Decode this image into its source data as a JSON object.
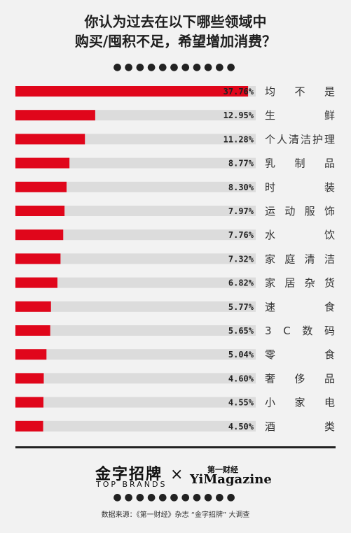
{
  "title_line1": "你认为过去在以下哪些领域中",
  "title_line2": "购买/囤积不足，希望增加消费？",
  "dots": "●●●●●●●●●●●",
  "chart_data": {
    "type": "bar",
    "orientation": "horizontal",
    "categories": [
      "均不是",
      "生鲜",
      "个人清洁护理",
      "乳制品",
      "时装",
      "运动服饰",
      "水饮",
      "家庭清洁",
      "家居杂货",
      "速食",
      "3C数码",
      "零食",
      "奢侈品",
      "小家电",
      "酒类"
    ],
    "value_labels": [
      "37.76%",
      "12.95%",
      "11.28%",
      "8.77%",
      "8.30%",
      "7.97%",
      "7.76%",
      "7.32%",
      "6.82%",
      "5.77%",
      "5.65%",
      "5.04%",
      "4.60%",
      "4.55%",
      "4.50%"
    ],
    "values": [
      37.76,
      12.95,
      11.28,
      8.77,
      8.3,
      7.97,
      7.76,
      7.32,
      6.82,
      5.77,
      5.65,
      5.04,
      4.6,
      4.55,
      4.5
    ],
    "xlim": [
      0,
      39
    ],
    "bar_color": "#e0061b",
    "track_color": "#dcdcdc"
  },
  "footer": {
    "brand_cn": "金字招牌",
    "brand_en": "TOP BRANDS",
    "times": "×",
    "yi_cn": "第一财经",
    "yi_en": "YiMagazine",
    "source": "数据来源：《第一财经》杂志 “金字招牌” 大调查"
  }
}
